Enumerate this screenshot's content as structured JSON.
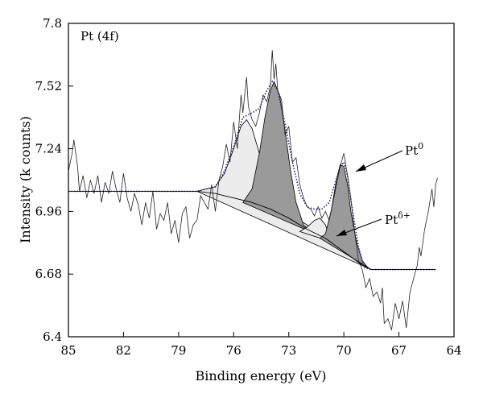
{
  "chart_data": {
    "type": "line",
    "title": "Pt (4f)",
    "xlabel": "Binding energy (eV)",
    "ylabel": "Intensity (k counts)",
    "xlim": [
      85,
      64
    ],
    "ylim": [
      6.4,
      7.8
    ],
    "x_reversed": true,
    "x_ticks": [
      "85",
      "82",
      "79",
      "76",
      "73",
      "70",
      "67",
      "64"
    ],
    "y_ticks": [
      "7.8",
      "7.52",
      "7.24",
      "6.96",
      "6.68",
      "6.4"
    ],
    "grid": false,
    "annotations": [
      {
        "label": "Pt",
        "sup": "0",
        "points_to": [
          69.9,
          7.14
        ]
      },
      {
        "label": "Pt",
        "sup": "δ+",
        "points_to": [
          70.4,
          6.81
        ]
      }
    ],
    "series": [
      {
        "role": "raw-data",
        "style": "noisy-line",
        "points": [
          [
            85.0,
            7.14
          ],
          [
            84.8,
            7.22
          ],
          [
            84.7,
            7.28
          ],
          [
            84.5,
            7.16
          ],
          [
            84.4,
            7.05
          ],
          [
            84.2,
            7.12
          ],
          [
            84.0,
            7.02
          ],
          [
            83.8,
            7.1
          ],
          [
            83.6,
            7.04
          ],
          [
            83.4,
            7.12
          ],
          [
            83.2,
            7.0
          ],
          [
            83.0,
            7.09
          ],
          [
            82.8,
            7.04
          ],
          [
            82.6,
            7.14
          ],
          [
            82.4,
            7.06
          ],
          [
            82.2,
            7.0
          ],
          [
            82.0,
            7.13
          ],
          [
            81.8,
            7.02
          ],
          [
            81.6,
            6.96
          ],
          [
            81.4,
            7.04
          ],
          [
            81.2,
            6.99
          ],
          [
            81.0,
            6.9
          ],
          [
            80.8,
            7.0
          ],
          [
            80.6,
            6.93
          ],
          [
            80.4,
            7.05
          ],
          [
            80.2,
            6.88
          ],
          [
            80.0,
            6.95
          ],
          [
            79.8,
            6.92
          ],
          [
            79.6,
            7.0
          ],
          [
            79.4,
            6.86
          ],
          [
            79.2,
            6.92
          ],
          [
            79.0,
            6.82
          ],
          [
            78.8,
            6.95
          ],
          [
            78.6,
            6.98
          ],
          [
            78.4,
            6.84
          ],
          [
            78.2,
            6.9
          ],
          [
            78.0,
            6.92
          ],
          [
            77.8,
            7.03
          ],
          [
            77.6,
            7.0
          ],
          [
            77.4,
            6.97
          ],
          [
            77.2,
            7.08
          ],
          [
            77.0,
            6.96
          ],
          [
            76.8,
            7.1
          ],
          [
            76.6,
            7.16
          ],
          [
            76.4,
            7.26
          ],
          [
            76.2,
            7.18
          ],
          [
            76.0,
            7.36
          ],
          [
            75.8,
            7.24
          ],
          [
            75.6,
            7.48
          ],
          [
            75.5,
            7.4
          ],
          [
            75.3,
            7.56
          ],
          [
            75.2,
            7.43
          ],
          [
            75.0,
            7.37
          ],
          [
            74.8,
            7.34
          ],
          [
            74.6,
            7.4
          ],
          [
            74.4,
            7.48
          ],
          [
            74.2,
            7.45
          ],
          [
            74.0,
            7.52
          ],
          [
            73.9,
            7.68
          ],
          [
            73.8,
            7.55
          ],
          [
            73.7,
            7.62
          ],
          [
            73.6,
            7.5
          ],
          [
            73.4,
            7.46
          ],
          [
            73.2,
            7.3
          ],
          [
            73.0,
            7.34
          ],
          [
            72.8,
            7.18
          ],
          [
            72.6,
            7.2
          ],
          [
            72.4,
            7.08
          ],
          [
            72.2,
            7.02
          ],
          [
            72.0,
            6.98
          ],
          [
            71.8,
            6.97
          ],
          [
            71.6,
            6.94
          ],
          [
            71.4,
            6.98
          ],
          [
            71.2,
            6.93
          ],
          [
            71.0,
            6.96
          ],
          [
            70.8,
            6.92
          ],
          [
            70.6,
            7.0
          ],
          [
            70.4,
            7.08
          ],
          [
            70.2,
            7.16
          ],
          [
            70.0,
            7.22
          ],
          [
            69.8,
            7.12
          ],
          [
            69.6,
            7.0
          ],
          [
            69.4,
            6.86
          ],
          [
            69.2,
            6.74
          ],
          [
            69.0,
            6.7
          ],
          [
            68.8,
            6.62
          ],
          [
            68.6,
            6.66
          ],
          [
            68.4,
            6.58
          ],
          [
            68.2,
            6.6
          ],
          [
            68.0,
            6.55
          ],
          [
            67.9,
            6.62
          ],
          [
            67.8,
            6.46
          ],
          [
            67.6,
            6.48
          ],
          [
            67.4,
            6.43
          ],
          [
            67.2,
            6.55
          ],
          [
            67.0,
            6.48
          ],
          [
            66.8,
            6.56
          ],
          [
            66.6,
            6.44
          ],
          [
            66.4,
            6.6
          ],
          [
            66.2,
            6.66
          ],
          [
            66.0,
            6.72
          ],
          [
            65.9,
            6.8
          ],
          [
            65.8,
            6.76
          ],
          [
            65.6,
            6.88
          ],
          [
            65.4,
            6.96
          ],
          [
            65.2,
            7.06
          ],
          [
            65.1,
            6.98
          ],
          [
            65.0,
            7.08
          ],
          [
            64.9,
            7.11
          ]
        ]
      },
      {
        "role": "fit-envelope",
        "style": "dotted",
        "points": [
          [
            85.0,
            7.05
          ],
          [
            78.0,
            7.05
          ],
          [
            77.0,
            7.07
          ],
          [
            76.5,
            7.14
          ],
          [
            76.0,
            7.25
          ],
          [
            75.5,
            7.38
          ],
          [
            75.0,
            7.4
          ],
          [
            74.6,
            7.42
          ],
          [
            74.2,
            7.5
          ],
          [
            73.9,
            7.54
          ],
          [
            73.6,
            7.5
          ],
          [
            73.2,
            7.35
          ],
          [
            72.8,
            7.18
          ],
          [
            72.4,
            7.04
          ],
          [
            72.0,
            6.98
          ],
          [
            71.6,
            6.97
          ],
          [
            71.2,
            6.97
          ],
          [
            70.8,
            7.0
          ],
          [
            70.5,
            7.08
          ],
          [
            70.2,
            7.16
          ],
          [
            70.0,
            7.18
          ],
          [
            69.8,
            7.12
          ],
          [
            69.5,
            6.95
          ],
          [
            69.2,
            6.8
          ],
          [
            68.9,
            6.71
          ],
          [
            68.5,
            6.7
          ],
          [
            65.0,
            6.7
          ]
        ]
      },
      {
        "role": "background",
        "style": "line",
        "points": [
          [
            85.0,
            7.05
          ],
          [
            78.0,
            7.05
          ],
          [
            77.0,
            7.04
          ],
          [
            76.5,
            7.03
          ],
          [
            76.0,
            7.02
          ],
          [
            75.0,
            7.0
          ],
          [
            74.0,
            6.97
          ],
          [
            73.0,
            6.93
          ],
          [
            72.0,
            6.88
          ],
          [
            71.0,
            6.84
          ],
          [
            70.0,
            6.78
          ],
          [
            69.0,
            6.72
          ],
          [
            68.5,
            6.7
          ],
          [
            65.0,
            6.7
          ]
        ]
      },
      {
        "role": "component-1",
        "style": "filled-light",
        "points": [
          [
            78.0,
            7.05
          ],
          [
            77.0,
            7.07
          ],
          [
            76.5,
            7.13
          ],
          [
            76.0,
            7.24
          ],
          [
            75.6,
            7.34
          ],
          [
            75.3,
            7.37
          ],
          [
            75.0,
            7.33
          ],
          [
            74.6,
            7.22
          ],
          [
            74.2,
            7.12
          ],
          [
            73.8,
            7.05
          ],
          [
            73.4,
            7.0
          ],
          [
            73.0,
            6.95
          ],
          [
            72.0,
            6.9
          ],
          [
            71.0,
            6.85
          ],
          [
            70.0,
            6.79
          ],
          [
            69.0,
            6.72
          ],
          [
            68.5,
            6.7
          ]
        ]
      },
      {
        "role": "component-2",
        "style": "filled-dark",
        "points": [
          [
            75.5,
            7.0
          ],
          [
            75.0,
            7.06
          ],
          [
            74.6,
            7.22
          ],
          [
            74.3,
            7.38
          ],
          [
            74.0,
            7.5
          ],
          [
            73.8,
            7.54
          ],
          [
            73.5,
            7.48
          ],
          [
            73.2,
            7.32
          ],
          [
            72.9,
            7.14
          ],
          [
            72.6,
            7.0
          ],
          [
            72.2,
            6.9
          ],
          [
            71.8,
            6.87
          ],
          [
            71.4,
            6.85
          ],
          [
            71.0,
            6.84
          ]
        ]
      },
      {
        "role": "component-3",
        "style": "filled-light",
        "points": [
          [
            72.4,
            6.87
          ],
          [
            72.0,
            6.89
          ],
          [
            71.6,
            6.92
          ],
          [
            71.3,
            6.93
          ],
          [
            71.0,
            6.9
          ],
          [
            70.8,
            6.85
          ],
          [
            70.5,
            6.82
          ]
        ]
      },
      {
        "role": "component-4",
        "style": "filled-dark",
        "points": [
          [
            71.3,
            6.84
          ],
          [
            71.0,
            6.86
          ],
          [
            70.7,
            6.96
          ],
          [
            70.4,
            7.1
          ],
          [
            70.2,
            7.17
          ],
          [
            70.0,
            7.16
          ],
          [
            69.8,
            7.08
          ],
          [
            69.6,
            6.95
          ],
          [
            69.3,
            6.82
          ],
          [
            69.0,
            6.74
          ],
          [
            68.7,
            6.71
          ],
          [
            68.5,
            6.7
          ]
        ]
      }
    ]
  }
}
